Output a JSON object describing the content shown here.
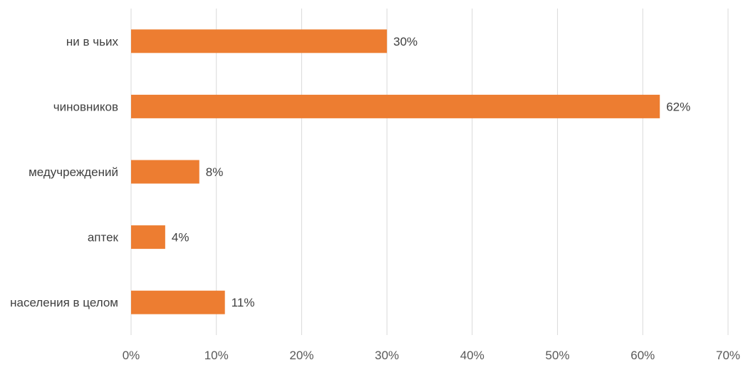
{
  "chart_data": {
    "type": "bar",
    "orientation": "horizontal",
    "categories": [
      "ни в чьих",
      "чиновников",
      "медучреждений",
      "аптек",
      "населения в целом"
    ],
    "values": [
      30,
      62,
      8,
      4,
      11
    ],
    "data_labels": [
      "30%",
      "62%",
      "8%",
      "4%",
      "11%"
    ],
    "xlim": [
      0,
      70
    ],
    "x_ticks": [
      0,
      10,
      20,
      30,
      40,
      50,
      60,
      70
    ],
    "x_tick_labels": [
      "0%",
      "10%",
      "20%",
      "30%",
      "40%",
      "50%",
      "60%",
      "70%"
    ],
    "grid": true,
    "legend": "none",
    "bar_color": "#ED7D31",
    "grid_color": "#D9D9D9"
  }
}
